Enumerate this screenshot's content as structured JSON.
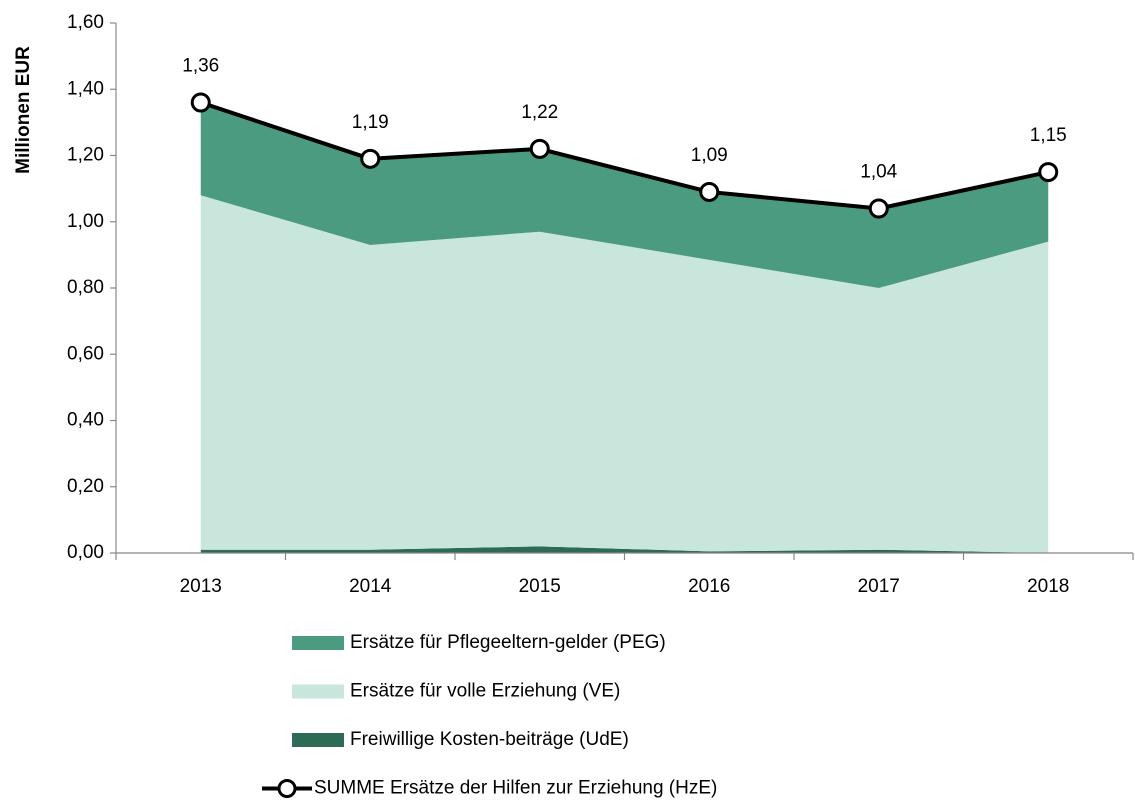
{
  "chart_data": {
    "type": "area",
    "stacked": true,
    "y_label": "Millionen EUR",
    "categories": [
      "2013",
      "2014",
      "2015",
      "2016",
      "2017",
      "2018"
    ],
    "ylim": [
      0,
      1.6
    ],
    "yticks": [
      {
        "value": 0,
        "label": "0,00"
      },
      {
        "value": 0.2,
        "label": "0,20"
      },
      {
        "value": 0.4,
        "label": "0,40"
      },
      {
        "value": 0.6,
        "label": "0,60"
      },
      {
        "value": 0.8,
        "label": "0,80"
      },
      {
        "value": 1.0,
        "label": "1,00"
      },
      {
        "value": 1.2,
        "label": "1,20"
      },
      {
        "value": 1.4,
        "label": "1,40"
      },
      {
        "value": 1.6,
        "label": "1,60"
      }
    ],
    "series": [
      {
        "name": "Ersätze für Pflegeeltern-gelder (PEG)",
        "color": "#4a9b80",
        "values": [
          0.28,
          0.26,
          0.25,
          0.2,
          0.24,
          0.21
        ]
      },
      {
        "name": "Ersätze für volle Erziehung (VE)",
        "color": "#c9e6dc",
        "values": [
          1.07,
          0.92,
          0.95,
          0.88,
          0.79,
          0.94
        ]
      },
      {
        "name": "Freiwillige Kosten-beiträge (UdE)",
        "color": "#2e6b55",
        "values": [
          0.01,
          0.01,
          0.02,
          0.005,
          0.01,
          0
        ]
      },
      {
        "name": "SUMME Ersätze der Hilfen zur Erziehung (HzE)",
        "type": "line",
        "color": "#000000",
        "values": [
          1.36,
          1.19,
          1.22,
          1.09,
          1.04,
          1.15
        ],
        "value_labels": [
          "1,36",
          "1,19",
          "1,22",
          "1,09",
          "1,04",
          "1,15"
        ]
      }
    ]
  }
}
